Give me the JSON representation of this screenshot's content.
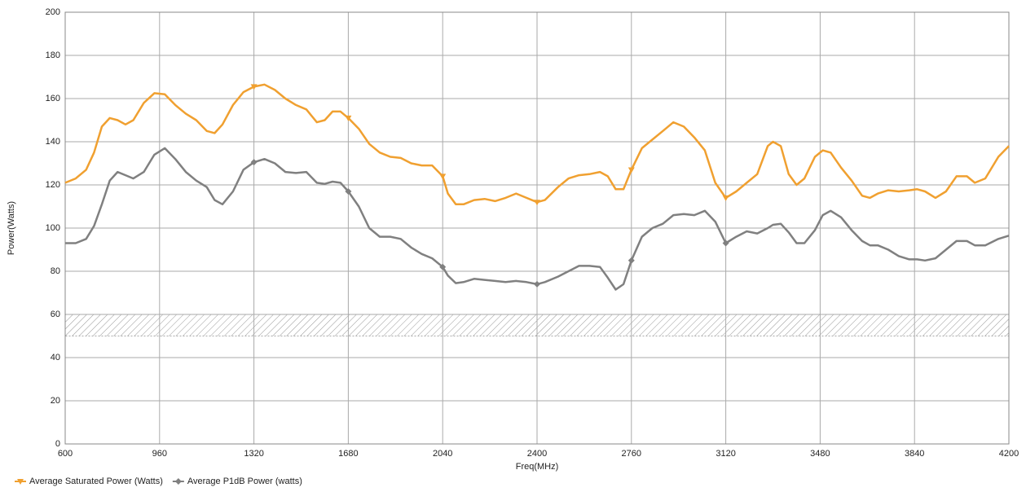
{
  "chart_data": {
    "type": "line",
    "x_label": "Freq(MHz)",
    "y_label": "Power(Watts)",
    "x": [
      600,
      640,
      680,
      710,
      740,
      770,
      800,
      830,
      860,
      900,
      940,
      980,
      1020,
      1060,
      1100,
      1140,
      1170,
      1200,
      1240,
      1280,
      1320,
      1360,
      1400,
      1440,
      1480,
      1520,
      1560,
      1590,
      1620,
      1650,
      1680,
      1720,
      1760,
      1800,
      1840,
      1880,
      1920,
      1960,
      2000,
      2040,
      2060,
      2090,
      2120,
      2160,
      2200,
      2240,
      2280,
      2320,
      2360,
      2400,
      2430,
      2480,
      2520,
      2560,
      2600,
      2640,
      2670,
      2700,
      2730,
      2760,
      2800,
      2840,
      2880,
      2920,
      2960,
      3000,
      3040,
      3080,
      3120,
      3160,
      3200,
      3240,
      3280,
      3300,
      3330,
      3360,
      3390,
      3420,
      3460,
      3490,
      3520,
      3560,
      3600,
      3640,
      3670,
      3700,
      3740,
      3780,
      3820,
      3850,
      3880,
      3920,
      3960,
      4000,
      4040,
      4070,
      4110,
      4160,
      4200
    ],
    "series": [
      {
        "name": "Average Saturated Power (Watts)",
        "color": "#f0a030",
        "marker": "triangle",
        "values": [
          121,
          123,
          127,
          135,
          147,
          151,
          150,
          148,
          150,
          158,
          162.5,
          162,
          157,
          153,
          150,
          145,
          144,
          148,
          157,
          163,
          165.5,
          166.5,
          164,
          160,
          157,
          155,
          149,
          150,
          154,
          154,
          151,
          146,
          139,
          135,
          133,
          132.5,
          130,
          129,
          129,
          124,
          116,
          111,
          111,
          113,
          113.5,
          112.5,
          114,
          116,
          114,
          112,
          113,
          119,
          123,
          124.5,
          125,
          126,
          124,
          118,
          118,
          127,
          137,
          141,
          145,
          149,
          147,
          142,
          136,
          121,
          114,
          117,
          121,
          125,
          138,
          140,
          138,
          125,
          120,
          123,
          133,
          136,
          135,
          128,
          122,
          115,
          114,
          116,
          117.5,
          117,
          117.5,
          118,
          117,
          114,
          117,
          124,
          124,
          121,
          123,
          133,
          138
        ]
      },
      {
        "name": "Average P1dB Power (watts)",
        "color": "#808080",
        "marker": "diamond",
        "values": [
          93,
          93,
          95,
          101,
          111,
          122,
          126,
          124.5,
          123,
          126,
          134,
          137,
          132,
          126,
          122,
          119,
          113,
          111,
          117,
          127,
          130.5,
          132,
          130,
          126,
          125.5,
          126,
          121,
          120.5,
          121.5,
          121,
          117,
          110,
          100,
          96,
          96,
          95,
          91,
          88,
          86,
          82,
          78,
          74.5,
          75,
          76.5,
          76,
          75.5,
          75,
          75.5,
          75,
          74,
          75,
          77.5,
          80,
          82.5,
          82.5,
          82,
          77,
          71.5,
          74,
          85,
          96,
          100,
          102,
          106,
          106.5,
          106,
          108,
          103,
          93,
          96,
          98.5,
          97.5,
          100,
          101.5,
          102,
          98,
          93,
          93,
          99,
          106,
          108,
          105,
          99,
          94,
          92,
          92,
          90,
          87,
          85.5,
          85.5,
          85,
          86,
          90,
          94,
          94,
          92,
          92,
          95,
          96.5
        ]
      }
    ],
    "band": [
      50,
      60
    ],
    "xlim": [
      600,
      4200
    ],
    "xticks": [
      600,
      960,
      1320,
      1680,
      2040,
      2400,
      2760,
      3120,
      3480,
      3840,
      4200
    ],
    "ylim": [
      0,
      200
    ],
    "yticks": [
      0,
      20,
      40,
      60,
      80,
      100,
      120,
      140,
      160,
      180,
      200
    ],
    "grid": true,
    "legend": "bottom-left"
  }
}
